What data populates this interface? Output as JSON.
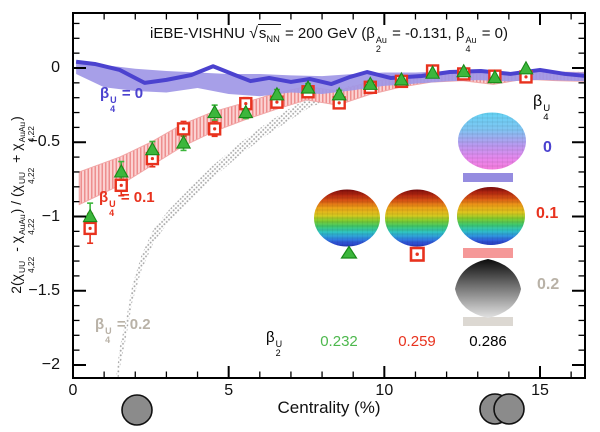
{
  "figure": {
    "title": "iEBE-VISHNU \\sqrt{s_{NN}} = 200 GeV (β_{2}^{Au} = -0.131, β_{4}^{Au} = 0)",
    "background": "#ffffff",
    "frame_color": "#000000"
  },
  "chart_data": {
    "type": "line",
    "title": "iEBE-VISHNU sqrt(s_NN) = 200 GeV (beta2^Au = -0.131, beta4^Au = 0)",
    "xlabel": "Centrality (%)",
    "ylabel": "2(χ_{4,22}^{UU} - χ_{4,22}^{AuAu}) / (χ_{4,22}^{UU} + χ_{4,22}^{AuAu})",
    "xlim": [
      0,
      16.5
    ],
    "ylim": [
      -2.09,
      0.37
    ],
    "grid": false,
    "x_major_ticks": [
      0,
      5,
      10,
      15
    ],
    "x_tick_labels": [
      "0",
      "5",
      "10",
      "15"
    ],
    "y_major_ticks": [
      0,
      -0.5,
      -1,
      -1.5,
      -2
    ],
    "y_tick_labels": [
      "0",
      "−0.5",
      "−1",
      "−1.5",
      "−2"
    ],
    "x_minor_step": 1,
    "y_minor_step": 0.1,
    "series": [
      {
        "name": "beta4U_0_band",
        "kind": "band",
        "color": "#9f97e6",
        "x": [
          0.1,
          1,
          2,
          3,
          4,
          5,
          6,
          7,
          8,
          9,
          10,
          11,
          12,
          13,
          14,
          15,
          16.5
        ],
        "upper": [
          0.05,
          0.02,
          -0.005,
          -0.02,
          -0.03,
          -0.04,
          -0.04,
          -0.05,
          -0.055,
          -0.04,
          -0.03,
          -0.03,
          -0.022,
          -0.022,
          -0.028,
          -0.022,
          -0.03
        ],
        "lower": [
          -0.04,
          -0.13,
          -0.155,
          -0.165,
          -0.135,
          -0.175,
          -0.19,
          -0.165,
          -0.175,
          -0.15,
          -0.12,
          -0.105,
          -0.09,
          -0.082,
          -0.09,
          -0.08,
          -0.09
        ]
      },
      {
        "name": "beta4U_0_line",
        "kind": "line",
        "color": "#4b42cf",
        "x": [
          0.1,
          0.7,
          1.5,
          2.3,
          3.0,
          3.8,
          4.5,
          5.2,
          5.7,
          6.3,
          7.0,
          7.6,
          8.3,
          8.9,
          9.45,
          10.2,
          11.2,
          12.1,
          13.1,
          14.05,
          15.0,
          15.8,
          16.5
        ],
        "y": [
          0.042,
          0.027,
          -0.013,
          -0.1,
          -0.08,
          -0.047,
          0.012,
          -0.047,
          -0.088,
          -0.067,
          -0.094,
          -0.074,
          -0.108,
          -0.06,
          -0.027,
          -0.067,
          -0.054,
          -0.027,
          -0.02,
          -0.04,
          -0.013,
          -0.04,
          -0.054
        ]
      },
      {
        "name": "beta4U_01_band",
        "kind": "band",
        "pattern": "pink-hatch",
        "edge": "#f1a6a6",
        "x": [
          0.2,
          1.5,
          2.5,
          3.5,
          4.5,
          5.5,
          6.5,
          7.5,
          8.5,
          9.5,
          10.5,
          11.5,
          12.5,
          13.5,
          14.5,
          15.5,
          16.5
        ],
        "upper": [
          -0.7,
          -0.6,
          -0.5,
          -0.38,
          -0.295,
          -0.235,
          -0.17,
          -0.125,
          -0.155,
          -0.095,
          -0.065,
          -0.03,
          -0.028,
          -0.048,
          -0.02,
          -0.028,
          -0.03
        ],
        "lower": [
          -0.92,
          -0.79,
          -0.66,
          -0.53,
          -0.43,
          -0.35,
          -0.28,
          -0.215,
          -0.25,
          -0.18,
          -0.13,
          -0.095,
          -0.085,
          -0.11,
          -0.075,
          -0.085,
          -0.09
        ]
      },
      {
        "name": "beta4U_02_band",
        "kind": "band",
        "pattern": "gray-dots",
        "x": [
          1.35,
          1.5,
          1.7,
          1.9,
          2.2,
          2.6,
          3.1,
          3.8,
          4.5,
          5.4,
          6.1,
          6.9,
          7.6,
          8.5,
          9.5,
          10.5,
          11.5,
          12.5,
          13.5,
          14.5,
          15.5,
          16.5
        ],
        "upper": [
          -2.15,
          -1.88,
          -1.7,
          -1.47,
          -1.26,
          -1.08,
          -0.95,
          -0.8,
          -0.655,
          -0.5,
          -0.39,
          -0.28,
          -0.2,
          -0.135,
          -0.1,
          -0.075,
          -0.055,
          -0.045,
          -0.04,
          -0.032,
          -0.028,
          -0.025
        ],
        "lower": [
          -2.38,
          -2.02,
          -1.82,
          -1.58,
          -1.36,
          -1.17,
          -1.03,
          -0.89,
          -0.74,
          -0.58,
          -0.47,
          -0.36,
          -0.265,
          -0.195,
          -0.15,
          -0.125,
          -0.098,
          -0.078,
          -0.07,
          -0.058,
          -0.052,
          -0.045
        ]
      },
      {
        "name": "uu_squares",
        "kind": "scatter",
        "marker": "square",
        "color": "#e8321e",
        "x": [
          0.55,
          1.55,
          2.55,
          3.55,
          4.55,
          5.55,
          6.55,
          7.55,
          8.55,
          9.55,
          10.55,
          11.55,
          12.55,
          13.55,
          14.55
        ],
        "y": [
          -1.08,
          -0.79,
          -0.61,
          -0.41,
          -0.41,
          -0.24,
          -0.23,
          -0.16,
          -0.235,
          -0.13,
          -0.09,
          -0.02,
          -0.04,
          -0.055,
          -0.06
        ],
        "yerr": [
          0.1,
          0.07,
          0.055,
          0.05,
          0.05,
          0.04,
          0.035,
          0.03,
          0.03,
          0.025,
          0.02,
          0.02,
          0.015,
          0.015,
          0.015
        ]
      },
      {
        "name": "uu_triangles",
        "kind": "scatter",
        "marker": "triangle",
        "color": "#3cb63c",
        "x": [
          0.55,
          1.55,
          2.55,
          3.55,
          4.55,
          5.55,
          6.55,
          7.55,
          8.55,
          9.55,
          10.55,
          11.55,
          12.55,
          13.55,
          14.55
        ],
        "y": [
          -1.0,
          -0.7,
          -0.55,
          -0.505,
          -0.3,
          -0.3,
          -0.18,
          -0.135,
          -0.18,
          -0.11,
          -0.08,
          -0.035,
          -0.025,
          -0.065,
          -0.005
        ],
        "yerr": [
          0.09,
          0.07,
          0.055,
          0.05,
          0.05,
          0.04,
          0.035,
          0.03,
          0.03,
          0.025,
          0.02,
          0.02,
          0.015,
          0.015,
          0.015
        ]
      }
    ]
  },
  "plot_labels": {
    "beta4_0": {
      "text": "β_{4}^{U} = 0",
      "color": "#4b42cf"
    },
    "beta4_01": {
      "text": "β_{4}^{U} = 0.1",
      "color": "#e8321e"
    },
    "beta4_02": {
      "text": "β_{4}^{U} = 0.2",
      "color": "#b9b2a7"
    }
  },
  "legend": {
    "header": {
      "text": "β_{4}^{U}",
      "color": "#000000"
    },
    "entries": [
      {
        "label": "0",
        "label_color": "#4b42cf",
        "swatch_color": "#958ce0",
        "shape": "oblate-spheroid-cool"
      },
      {
        "label": "0.1",
        "label_color": "#e8321e",
        "swatch_color": "#f59898",
        "shape": "oblate-spheroid-rainbow"
      },
      {
        "label": "0.2",
        "label_color": "#b9b2a7",
        "swatch_color": "#dcd8d2",
        "shape": "lens-gray"
      }
    ],
    "markers": [
      {
        "marker": "triangle",
        "color": "#3cb63c"
      },
      {
        "marker": "square",
        "color": "#e8321e"
      }
    ],
    "beta2_row": {
      "header": {
        "text": "β_{2}^{U}",
        "color": "#000000"
      },
      "values": [
        {
          "text": "0.232",
          "color": "#4db84d"
        },
        {
          "text": "0.259",
          "color": "#e8321e"
        },
        {
          "text": "0.286",
          "color": "#000000"
        }
      ]
    }
  },
  "nuclei_diagrams": {
    "single_circle": {
      "fill": "#8b8b8b",
      "outline": "#111111"
    },
    "overlapping_pair": {
      "fill": "#8b8b8b",
      "outline": "#111111"
    }
  }
}
